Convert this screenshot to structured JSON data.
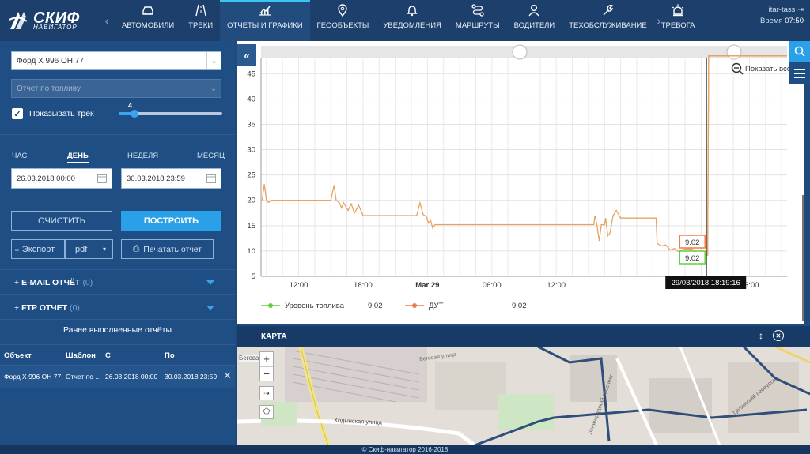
{
  "logo": {
    "brand": "СКИФ",
    "sub": "НАВИГАТОР"
  },
  "nav": {
    "items": [
      {
        "label": "АВТОМОБИЛИ",
        "icon": "car-icon"
      },
      {
        "label": "ТРЕКИ",
        "icon": "road-icon"
      },
      {
        "label": "ОТЧЕТЫ И ГРАФИКИ",
        "icon": "chart-icon"
      },
      {
        "label": "ГЕООБЪЕКТЫ",
        "icon": "pin-icon"
      },
      {
        "label": "УВЕДОМЛЕНИЯ",
        "icon": "bell-icon"
      },
      {
        "label": "МАРШРУТЫ",
        "icon": "route-icon"
      },
      {
        "label": "ВОДИТЕЛИ",
        "icon": "user-icon"
      },
      {
        "label": "ТЕХОБСЛУЖИВАНИЕ",
        "icon": "wrench-icon"
      },
      {
        "label": "ТРЕВОГА",
        "icon": "alarm-icon"
      }
    ],
    "active_index": 2
  },
  "user": {
    "name": "itar-tass",
    "time_label": "Время",
    "time": "07:50"
  },
  "left": {
    "vehicle": "Форд Х 996 ОН 77",
    "report_placeholder": "Отчет по топливу",
    "show_track_label": "Показывать трек",
    "track_value": "4",
    "track_level": 0.15,
    "periods": [
      "ЧАС",
      "ДЕНЬ",
      "НЕДЕЛЯ",
      "МЕСЯЦ"
    ],
    "active_period": 1,
    "date_from": "26.03.2018 00:00",
    "date_to": "30.03.2018 23:59",
    "clear_label": "ОЧИСТИТЬ",
    "build_label": "ПОСТРОИТЬ",
    "export_label": "Экспорт",
    "format": "pdf",
    "print_label": "Печатать отчет",
    "email_label": "E-MAIL ОТЧЁТ",
    "email_count": "(0)",
    "ftp_label": "FTP ОТЧЕТ",
    "ftp_count": "(0)",
    "prev_title": "Ранее выполненные отчёты",
    "table": {
      "headers": [
        "Объект",
        "Шаблон",
        "С",
        "По"
      ],
      "rows": [
        [
          "Форд Х 996 ОН 77",
          "Отчет по ...",
          "26.03.2018 00:00",
          "30.03.2018 23:59"
        ]
      ]
    }
  },
  "chart": {
    "show_all_label": "Показать все",
    "tooltip_date": "29/03/2018 18:19:16",
    "label_dut": "9.02",
    "label_level": "9.02",
    "legend": [
      {
        "name": "Уровень топлива",
        "value": "9.02",
        "color": "#5fd13c"
      },
      {
        "name": "ДУТ",
        "value": "9.02",
        "color": "#f07a4a"
      }
    ]
  },
  "chart_data": {
    "type": "line",
    "ylim": [
      5,
      48
    ],
    "yticks": [
      5,
      10,
      15,
      20,
      25,
      30,
      35,
      40,
      45
    ],
    "xticks": [
      "12:00",
      "18:00",
      "Mar 29",
      "06:00",
      "12:00",
      "18:00",
      "Mar 30",
      "06:00"
    ],
    "xtick_bold": [
      false,
      false,
      true,
      false,
      false,
      true,
      true,
      false
    ],
    "x_hours": [
      12,
      18,
      24,
      30,
      36,
      42,
      48,
      54
    ],
    "xlim": [
      8.5,
      57.5
    ],
    "series": [
      {
        "name": "ДУТ",
        "color": "#e8a264",
        "points": [
          [
            8.6,
            20
          ],
          [
            8.8,
            23.2
          ],
          [
            9.0,
            20
          ],
          [
            9.2,
            19.6
          ],
          [
            9.5,
            20
          ],
          [
            12,
            20
          ],
          [
            15,
            20
          ],
          [
            15.3,
            23
          ],
          [
            15.5,
            20
          ],
          [
            15.8,
            19.5
          ],
          [
            16,
            18.5
          ],
          [
            16.2,
            19.5
          ],
          [
            16.6,
            18
          ],
          [
            16.9,
            19.3
          ],
          [
            17.2,
            17.5
          ],
          [
            17.6,
            19
          ],
          [
            18,
            17
          ],
          [
            20,
            17
          ],
          [
            23,
            17
          ],
          [
            23.3,
            19.5
          ],
          [
            23.6,
            17.2
          ],
          [
            23.9,
            16.8
          ],
          [
            24.1,
            15.5
          ],
          [
            24.3,
            16
          ],
          [
            24.5,
            14.5
          ],
          [
            24.7,
            15.2
          ],
          [
            26,
            15.2
          ],
          [
            32,
            15.2
          ],
          [
            38,
            15.2
          ],
          [
            39.5,
            15.2
          ],
          [
            39.6,
            17
          ],
          [
            39.8,
            15
          ],
          [
            40,
            12
          ],
          [
            40.2,
            15.2
          ],
          [
            40.5,
            15.2
          ],
          [
            40.6,
            16.5
          ],
          [
            40.8,
            13
          ],
          [
            41,
            13.5
          ],
          [
            41.3,
            17
          ],
          [
            41.6,
            18
          ],
          [
            42,
            16.5
          ],
          [
            42.5,
            16.5
          ],
          [
            43,
            16.5
          ],
          [
            43.3,
            16.5
          ],
          [
            43.6,
            16.5
          ],
          [
            44,
            16.5
          ],
          [
            44.5,
            16.5
          ],
          [
            45.3,
            16.5
          ],
          [
            45.4,
            11.5
          ],
          [
            45.8,
            11
          ],
          [
            46.2,
            11.2
          ],
          [
            46.6,
            10.2
          ],
          [
            47,
            10.5
          ],
          [
            47.4,
            9.9
          ],
          [
            47.8,
            10.3
          ],
          [
            48.2,
            10.4
          ],
          [
            48.6,
            10.4
          ],
          [
            49,
            10
          ],
          [
            49.4,
            9.7
          ],
          [
            49.8,
            9.2
          ],
          [
            50.1,
            9.2
          ],
          [
            50.2,
            48.5
          ],
          [
            50.5,
            48.5
          ],
          [
            52,
            48.5
          ],
          [
            55,
            48.5
          ],
          [
            57.5,
            48.5
          ]
        ]
      }
    ]
  },
  "map": {
    "title": "КАРТА",
    "streets": [
      "Беговая",
      "Ходынская улица",
      "Беговая улица",
      "Ленинградский проспект",
      "Грузинский переулок"
    ]
  },
  "footer": "© Скиф-навигатор 2016-2018"
}
